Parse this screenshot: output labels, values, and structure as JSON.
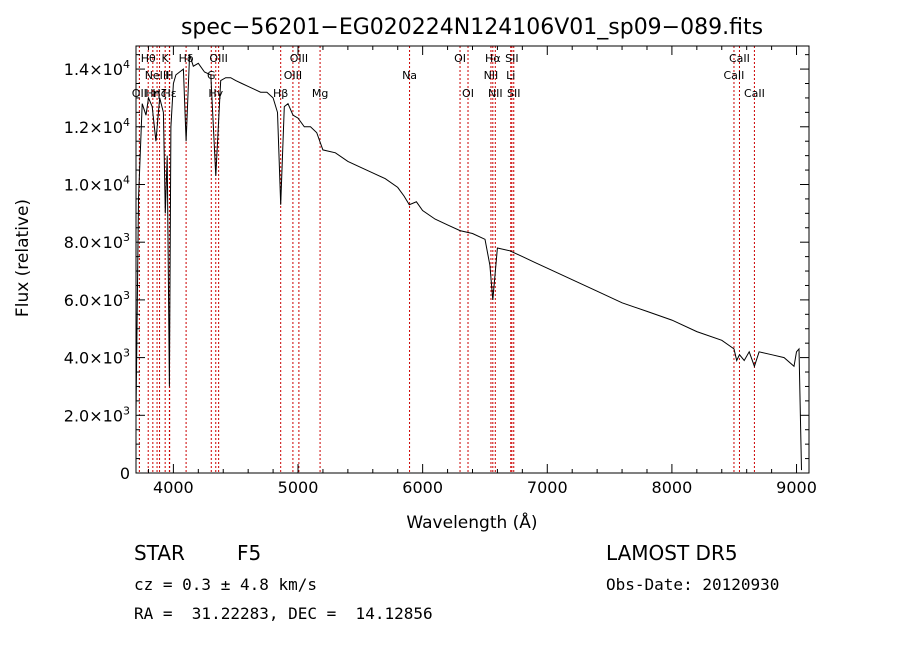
{
  "chart_data": {
    "type": "line",
    "title": "spec−56201−EG020224N124106V01_sp09−089.fits",
    "xlabel": "Wavelength (Å)",
    "ylabel": "Flux (relative)",
    "xlim": [
      3700,
      9100
    ],
    "ylim": [
      0,
      14800
    ],
    "x_ticks": [
      {
        "value": 4000,
        "label": "4000"
      },
      {
        "value": 5000,
        "label": "5000"
      },
      {
        "value": 6000,
        "label": "6000"
      },
      {
        "value": 7000,
        "label": "7000"
      },
      {
        "value": 8000,
        "label": "8000"
      },
      {
        "value": 9000,
        "label": "9000"
      }
    ],
    "y_ticks": [
      {
        "value": 0,
        "mant": "0",
        "exp": ""
      },
      {
        "value": 2000,
        "mant": "2.0×10",
        "exp": "3"
      },
      {
        "value": 4000,
        "mant": "4.0×10",
        "exp": "3"
      },
      {
        "value": 6000,
        "mant": "6.0×10",
        "exp": "3"
      },
      {
        "value": 8000,
        "mant": "8.0×10",
        "exp": "3"
      },
      {
        "value": 10000,
        "mant": "1.0×10",
        "exp": "4"
      },
      {
        "value": 12000,
        "mant": "1.2×10",
        "exp": "4"
      },
      {
        "value": 14000,
        "mant": "1.4×10",
        "exp": "4"
      }
    ],
    "series": [
      {
        "x": [
          3700,
          3720,
          3750,
          3780,
          3800,
          3830,
          3860,
          3890,
          3920,
          3935,
          3950,
          3968,
          3980,
          4000,
          4020,
          4050,
          4080,
          4102,
          4130,
          4160,
          4200,
          4250,
          4300,
          4340,
          4380,
          4420,
          4460,
          4500,
          4550,
          4600,
          4650,
          4700,
          4750,
          4800,
          4835,
          4861,
          4890,
          4920,
          4960,
          5000,
          5050,
          5100,
          5150,
          5200,
          5300,
          5400,
          5500,
          5600,
          5700,
          5800,
          5850,
          5893,
          5950,
          6000,
          6100,
          6200,
          6300,
          6400,
          6500,
          6540,
          6563,
          6600,
          6700,
          6800,
          6900,
          7000,
          7200,
          7400,
          7600,
          7800,
          8000,
          8200,
          8400,
          8498,
          8520,
          8542,
          8580,
          8620,
          8662,
          8700,
          8800,
          8900,
          8980,
          9000,
          9020,
          9040
        ],
        "y": [
          2000,
          9500,
          12800,
          12400,
          13000,
          12700,
          11500,
          13000,
          12500,
          9000,
          11000,
          3000,
          12000,
          13500,
          13800,
          13900,
          14000,
          11500,
          14500,
          14100,
          14200,
          13900,
          13800,
          10300,
          13600,
          13700,
          13700,
          13600,
          13500,
          13400,
          13300,
          13200,
          13200,
          13000,
          12500,
          9300,
          12700,
          12800,
          12400,
          12300,
          12000,
          12000,
          11800,
          11200,
          11100,
          10800,
          10600,
          10400,
          10200,
          9900,
          9600,
          9300,
          9400,
          9100,
          8800,
          8600,
          8400,
          8300,
          8100,
          7200,
          6000,
          7800,
          7700,
          7500,
          7300,
          7100,
          6700,
          6300,
          5900,
          5600,
          5300,
          4900,
          4600,
          4300,
          3900,
          4100,
          3900,
          4200,
          3700,
          4200,
          4100,
          4000,
          3700,
          4200,
          4300,
          100
        ]
      }
    ],
    "lines": [
      {
        "wave": 3727,
        "label": "OII",
        "row": 3
      },
      {
        "wave": 3798,
        "label": "Hθ",
        "row": 1
      },
      {
        "wave": 3835,
        "label": "Hη",
        "row": 3
      },
      {
        "wave": 3869,
        "label": "NeIII",
        "row": 2
      },
      {
        "wave": 3889,
        "label": "Hζ",
        "row": 3
      },
      {
        "wave": 3934,
        "label": "K",
        "row": 1
      },
      {
        "wave": 3968,
        "label": "H",
        "row": 2
      },
      {
        "wave": 3970,
        "label": "Hε",
        "row": 3
      },
      {
        "wave": 4102,
        "label": "Hδ",
        "row": 1
      },
      {
        "wave": 4304,
        "label": "G",
        "row": 2
      },
      {
        "wave": 4340,
        "label": "Hγ",
        "row": 3
      },
      {
        "wave": 4363,
        "label": "OIII",
        "row": 1
      },
      {
        "wave": 4861,
        "label": "Hβ",
        "row": 3
      },
      {
        "wave": 4959,
        "label": "OIII",
        "row": 2
      },
      {
        "wave": 5007,
        "label": "OIII",
        "row": 1
      },
      {
        "wave": 5177,
        "label": "Mg",
        "row": 3
      },
      {
        "wave": 5895,
        "label": "Na",
        "row": 2
      },
      {
        "wave": 6300,
        "label": "OI",
        "row": 1
      },
      {
        "wave": 6364,
        "label": "OI",
        "row": 3
      },
      {
        "wave": 6548,
        "label": "NII",
        "row": 2
      },
      {
        "wave": 6563,
        "label": "Hα",
        "row": 1
      },
      {
        "wave": 6583,
        "label": "NII",
        "row": 3
      },
      {
        "wave": 6707,
        "label": "Li",
        "row": 2
      },
      {
        "wave": 6716,
        "label": "SII",
        "row": 1
      },
      {
        "wave": 6731,
        "label": "SII",
        "row": 3
      },
      {
        "wave": 8498,
        "label": "CaII",
        "row": 2
      },
      {
        "wave": 8542,
        "label": "CaII",
        "row": 1
      },
      {
        "wave": 8662,
        "label": "CaII",
        "row": 3
      }
    ],
    "colors": {
      "spectrum": "#000000",
      "line_marker": "#cc0000",
      "axis": "#000000"
    }
  },
  "info": {
    "class_label": "STAR",
    "subclass": "F5",
    "cz": "cz = 0.3 ± 4.8 km/s",
    "coords": "RA =  31.22283, DEC =  14.12856",
    "survey": "LAMOST DR5",
    "obs_date": "Obs-Date: 20120930"
  }
}
